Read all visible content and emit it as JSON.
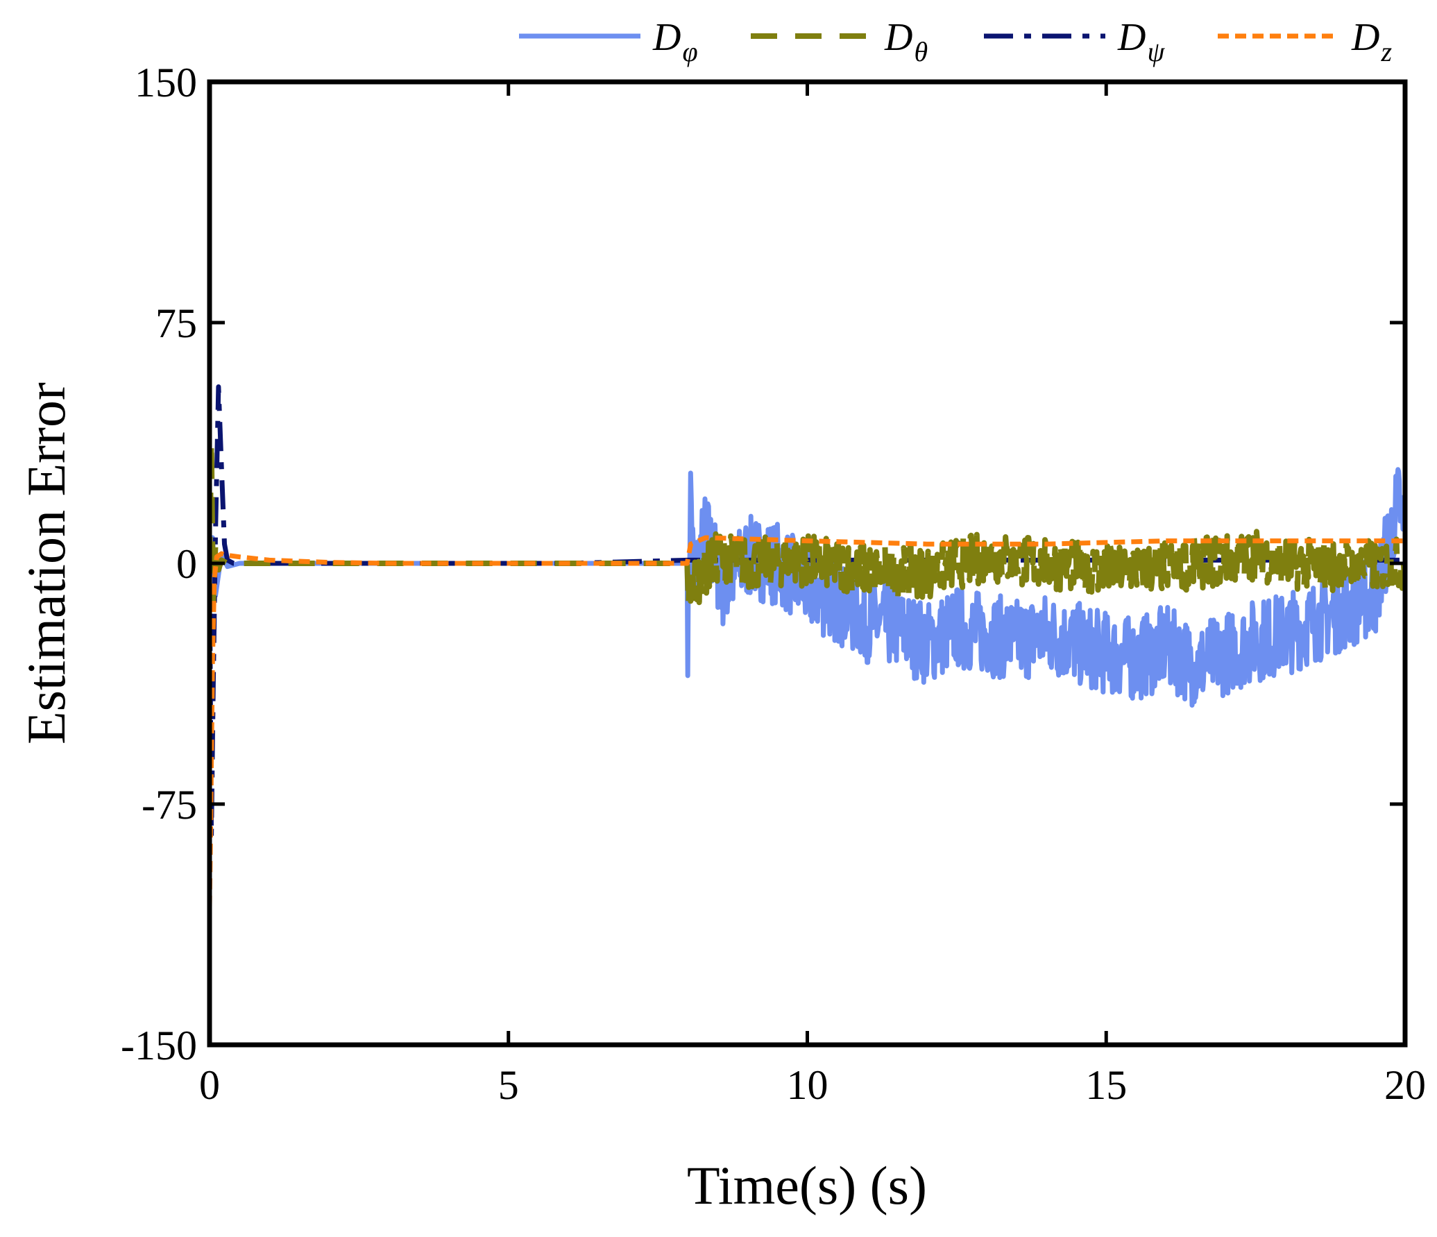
{
  "chart_data": {
    "type": "line",
    "title": "",
    "xlabel": "Time(s) (s)",
    "ylabel": "Estimation Error",
    "xlim": [
      0,
      20
    ],
    "ylim": [
      -150,
      150
    ],
    "xticks": [
      0,
      5,
      10,
      15,
      20
    ],
    "xtick_labels": [
      "0",
      "5",
      "10",
      "15",
      "20"
    ],
    "yticks": [
      150,
      75,
      0,
      -75,
      -150
    ],
    "ytick_labels": [
      "150",
      "75",
      "0",
      "-75",
      "-150"
    ],
    "grid": false,
    "legend_position": "top, outside above plot",
    "series": [
      {
        "name": "D_φ",
        "symbol": "D",
        "subscript": "φ",
        "color": "#6d8ff0",
        "dash": "solid",
        "x": [
          0,
          0.05,
          0.1,
          0.2,
          0.3,
          0.5,
          1,
          2,
          4,
          6,
          7.99,
          8.0,
          8.05,
          8.1,
          8.3,
          8.6,
          9.0,
          9.5,
          10.0,
          10.5,
          11.0,
          11.5,
          12.0,
          12.5,
          13.0,
          13.5,
          14.0,
          14.5,
          15.0,
          15.5,
          16.0,
          16.5,
          17.0,
          17.5,
          18.0,
          18.5,
          19.0,
          19.5,
          19.9,
          20.0
        ],
        "values": [
          0,
          8,
          -10,
          3,
          -1,
          0,
          0,
          0,
          0,
          0,
          0,
          -22,
          24,
          -5,
          10,
          -8,
          2,
          0,
          -8,
          -12,
          -18,
          -20,
          -25,
          -20,
          -22,
          -24,
          -22,
          -25,
          -28,
          -30,
          -26,
          -32,
          -28,
          -24,
          -22,
          -18,
          -14,
          -10,
          20,
          5
        ],
        "envelope_amplitude_after_8s": 13
      },
      {
        "name": "D_θ",
        "symbol": "D",
        "subscript": "θ",
        "color": "#7f7f0f",
        "dash": "dashed",
        "x": [
          0,
          0.03,
          0.06,
          0.1,
          0.15,
          0.2,
          0.3,
          0.5,
          1,
          2,
          4,
          6,
          7.99,
          8.0,
          8.5,
          9.0,
          10.0,
          11.0,
          12.0,
          12.5,
          13.0,
          14.0,
          15.0,
          16.0,
          17.0,
          17.5,
          18.0,
          19.0,
          20.0
        ],
        "values": [
          0,
          38,
          -12,
          6,
          -2,
          1,
          0,
          0,
          0,
          0,
          0,
          0,
          0,
          -8,
          2,
          0,
          1,
          -2,
          -3,
          0,
          2,
          0,
          -2,
          -1,
          1,
          3,
          0,
          -1,
          0
        ],
        "envelope_amplitude_after_8s": 8
      },
      {
        "name": "D_ψ",
        "symbol": "D",
        "subscript": "ψ",
        "color": "#0a1470",
        "dash": "dashdot",
        "x": [
          0,
          0.03,
          0.06,
          0.1,
          0.15,
          0.2,
          0.25,
          0.3,
          0.4,
          0.5,
          1,
          2,
          4,
          6,
          8,
          10,
          12,
          14,
          16,
          18,
          20
        ],
        "values": [
          0,
          -85,
          -40,
          10,
          55,
          30,
          6,
          1,
          0,
          0,
          0,
          0,
          0,
          0,
          1,
          1,
          1,
          1,
          1,
          1,
          1
        ]
      },
      {
        "name": "D_z",
        "symbol": "D",
        "subscript": "z",
        "color": "#ff7f0e",
        "dash": "dotted",
        "x": [
          0,
          0.02,
          0.05,
          0.08,
          0.12,
          0.2,
          0.3,
          0.5,
          1,
          2,
          3,
          4,
          6,
          7.99,
          8.05,
          8.3,
          10,
          12,
          14,
          16,
          18,
          20
        ],
        "values": [
          -107,
          -80,
          -30,
          -5,
          2,
          3,
          2.5,
          2,
          1,
          0.3,
          0,
          0,
          0,
          0,
          6,
          8,
          7,
          6,
          6,
          7,
          7,
          7
        ]
      }
    ]
  }
}
